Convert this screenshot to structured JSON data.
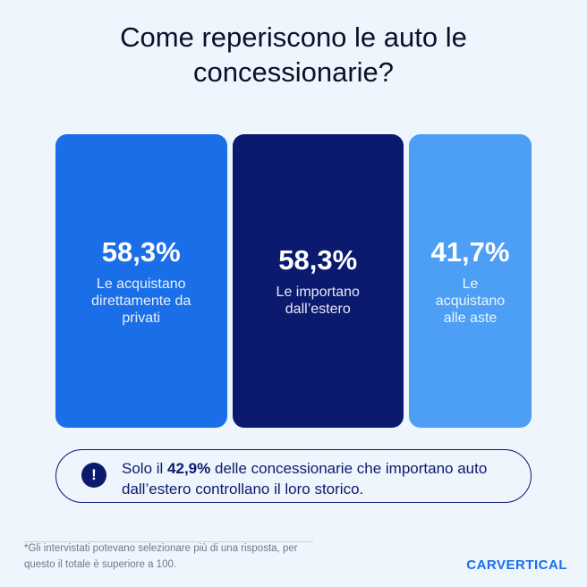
{
  "chart_data": {
    "type": "bar",
    "title": "Come reperiscono le auto le concessionarie?",
    "categories": [
      "Le acquistano direttamente da privati",
      "Le importano dall’estero",
      "Le acquistano alle aste"
    ],
    "values": [
      58.3,
      58.3,
      41.7
    ],
    "value_labels": [
      "58,3%",
      "58,3%",
      "41,7%"
    ],
    "colors": [
      "#1a6fe8",
      "#0b1a6e",
      "#4d9ef5"
    ]
  },
  "note": {
    "before": "Solo il",
    "highlight": "42,9%",
    "after": "delle concessionarie che importano auto dall’estero controllano il loro storico."
  },
  "footnote": "*Gli intervistati potevano selezionare più di una risposta, per questo il totale è superiore a 100.",
  "brand": "CARVERTICAL"
}
